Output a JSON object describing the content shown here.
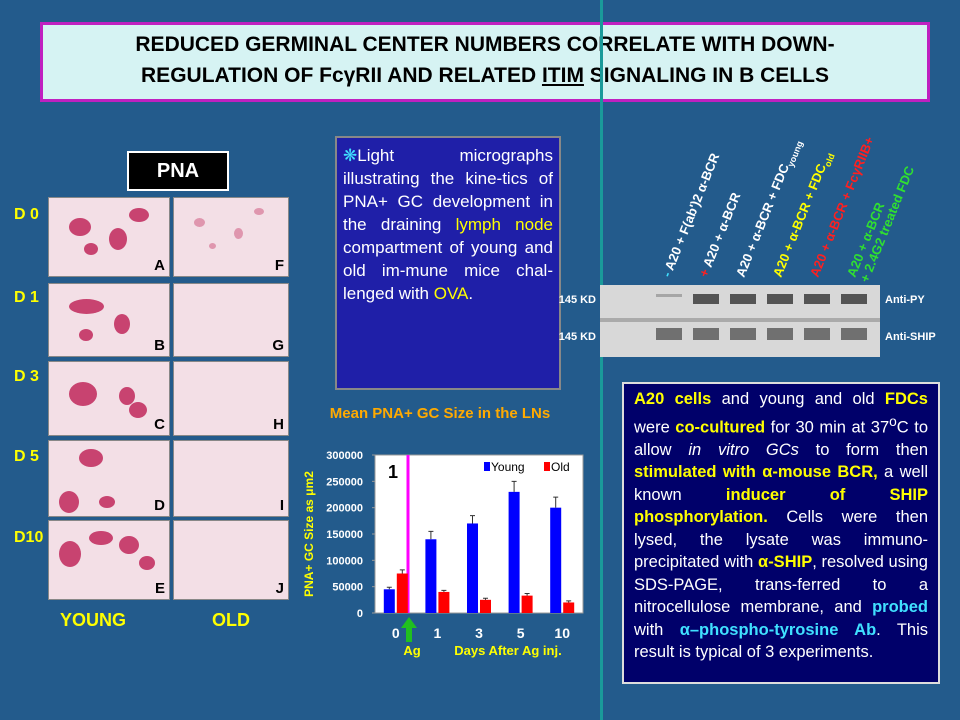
{
  "header": {
    "line1": "REDUCED GERMINAL CENTER NUMBERS CORRELATE WITH DOWN-",
    "line2_pre": "REGULATION OF FcγRII AND RELATED ",
    "line2_underlined": "ITIM",
    "line2_post": " SIGNALING IN B CELLS"
  },
  "micrographs": {
    "stain": "PNA",
    "days": [
      "D 0",
      "D 1",
      "D 3",
      "D 5",
      "D10"
    ],
    "young_panels": [
      "A",
      "B",
      "C",
      "D",
      "E"
    ],
    "old_panels": [
      "F",
      "G",
      "H",
      "I",
      "J"
    ],
    "young_label": "YOUNG",
    "old_label": "OLD"
  },
  "description": {
    "p1": "Light micrographs illustrating the kine-tics of PNA+ GC development in the draining ",
    "p2": "lymph node",
    "p3": " compartment of young and old im-mune mice chal-lenged with ",
    "p4": "OVA",
    "p5": "."
  },
  "blot": {
    "lanes": [
      {
        "sign": "-",
        "text": "A20 + F(ab')2 α-BCR"
      },
      {
        "sign": "+",
        "text": "A20 + α-BCR"
      },
      {
        "text": "A20 + α-BCR + FDC",
        "sub": "young"
      },
      {
        "text": "A20 + α-BCR + FDC",
        "sub": "old"
      },
      {
        "text": "A20 + α-BCR + FcγRIIB+"
      },
      {
        "text": "A20 + α-BCR",
        "text2": "+ 2.4G2 treated FDC"
      }
    ],
    "size_labels": [
      "145 KD",
      "145 KD"
    ],
    "antibodies": [
      "Anti-PY",
      "Anti-SHIP"
    ]
  },
  "method": {
    "segments": [
      "A20 cells",
      " and young and old ",
      "FDCs",
      " were ",
      "co-cultured",
      " for 30 min at 37",
      "o",
      "C to allow ",
      "in vitro GCs",
      " to form then ",
      "stimulated with α-mouse BCR,",
      " a well known ",
      "inducer of SHIP phosphorylation.",
      " Cells were then lysed, the lysate was immuno-precipitated with ",
      "α-SHIP",
      ", resolved using SDS-PAGE, trans-ferred to a nitrocellulose membrane, and ",
      "probed",
      " with ",
      "α–phospho-tyrosine Ab",
      ". This result is typical of 3 experiments."
    ]
  },
  "chart_data": {
    "type": "bar",
    "title": "Mean PNA+ GC Size in the LNs",
    "y_label": "PNA+ GC Size as μm2",
    "x_label": "Days After Ag inj.",
    "annotations": {
      "panel": "1",
      "injection": "Ag"
    },
    "categories": [
      "0",
      "1",
      "3",
      "5",
      "10"
    ],
    "series": [
      {
        "name": "Young",
        "color": "#0000ff",
        "values": [
          45000,
          140000,
          170000,
          230000,
          200000
        ],
        "errors": [
          4000,
          15000,
          15000,
          20000,
          20000
        ]
      },
      {
        "name": "Old",
        "color": "#ff0000",
        "values": [
          75000,
          40000,
          25000,
          33000,
          20000
        ],
        "errors": [
          7000,
          3000,
          3000,
          4000,
          3000
        ]
      }
    ],
    "ylim": [
      0,
      300000
    ],
    "yticks": [
      0,
      50000,
      100000,
      150000,
      200000,
      250000,
      300000
    ]
  }
}
